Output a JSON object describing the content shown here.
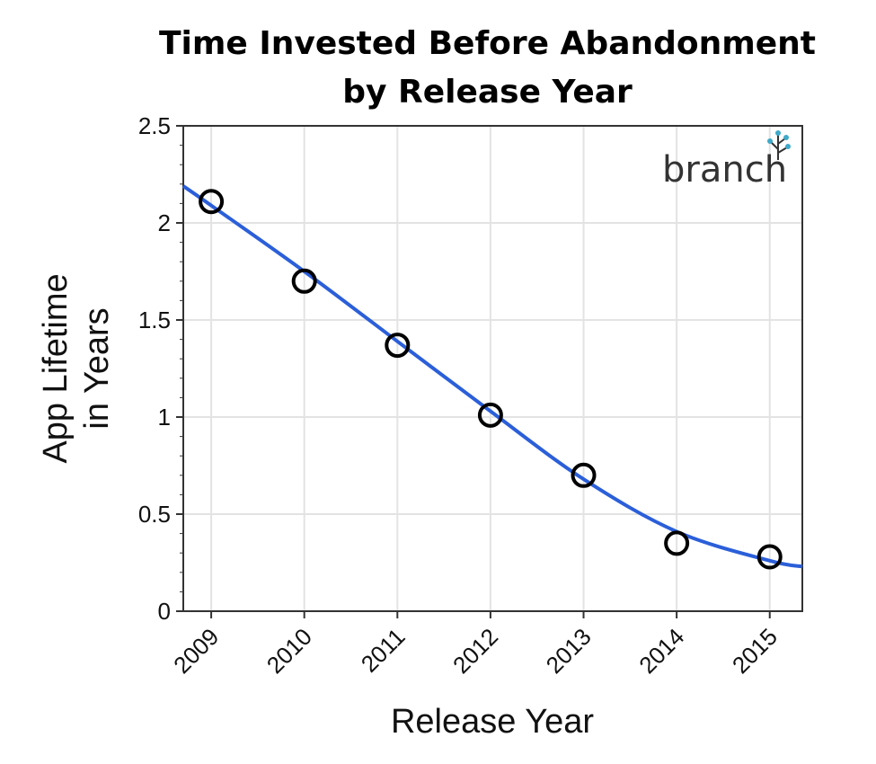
{
  "chart_data": {
    "type": "scatter",
    "title_lines": [
      "Time Invested Before Abandonment",
      "by Release Year"
    ],
    "xlabel": "Release Year",
    "ylabel_lines": [
      "App Lifetime",
      "in Years"
    ],
    "x": [
      2009,
      2010,
      2011,
      2012,
      2013,
      2014,
      2015
    ],
    "y": [
      2.11,
      1.7,
      1.37,
      1.01,
      0.7,
      0.35,
      0.28
    ],
    "trend_line": {
      "x": [
        2008.7,
        2009,
        2010,
        2011,
        2012,
        2013,
        2014,
        2015,
        2015.35
      ],
      "y": [
        2.19,
        2.09,
        1.75,
        1.39,
        1.03,
        0.68,
        0.41,
        0.26,
        0.23
      ]
    },
    "xlim": [
      2008.7,
      2015.35
    ],
    "ylim": [
      0,
      2.5
    ],
    "y_ticks": [
      0,
      0.5,
      1,
      1.5,
      2,
      2.5
    ],
    "y_tick_labels": [
      "0",
      "0.5",
      "1",
      "1.5",
      "2",
      "2.5"
    ],
    "x_tick_labels": [
      "2009",
      "2010",
      "2011",
      "2012",
      "2013",
      "2014",
      "2015"
    ],
    "grid": true,
    "colors": {
      "trend_line": "#2b5fd9",
      "points": "#000000",
      "grid": "#e3e3e3"
    }
  },
  "watermark": {
    "text": "branch",
    "icon": "branch-tree-icon",
    "icon_color": "#3fa9c9"
  }
}
